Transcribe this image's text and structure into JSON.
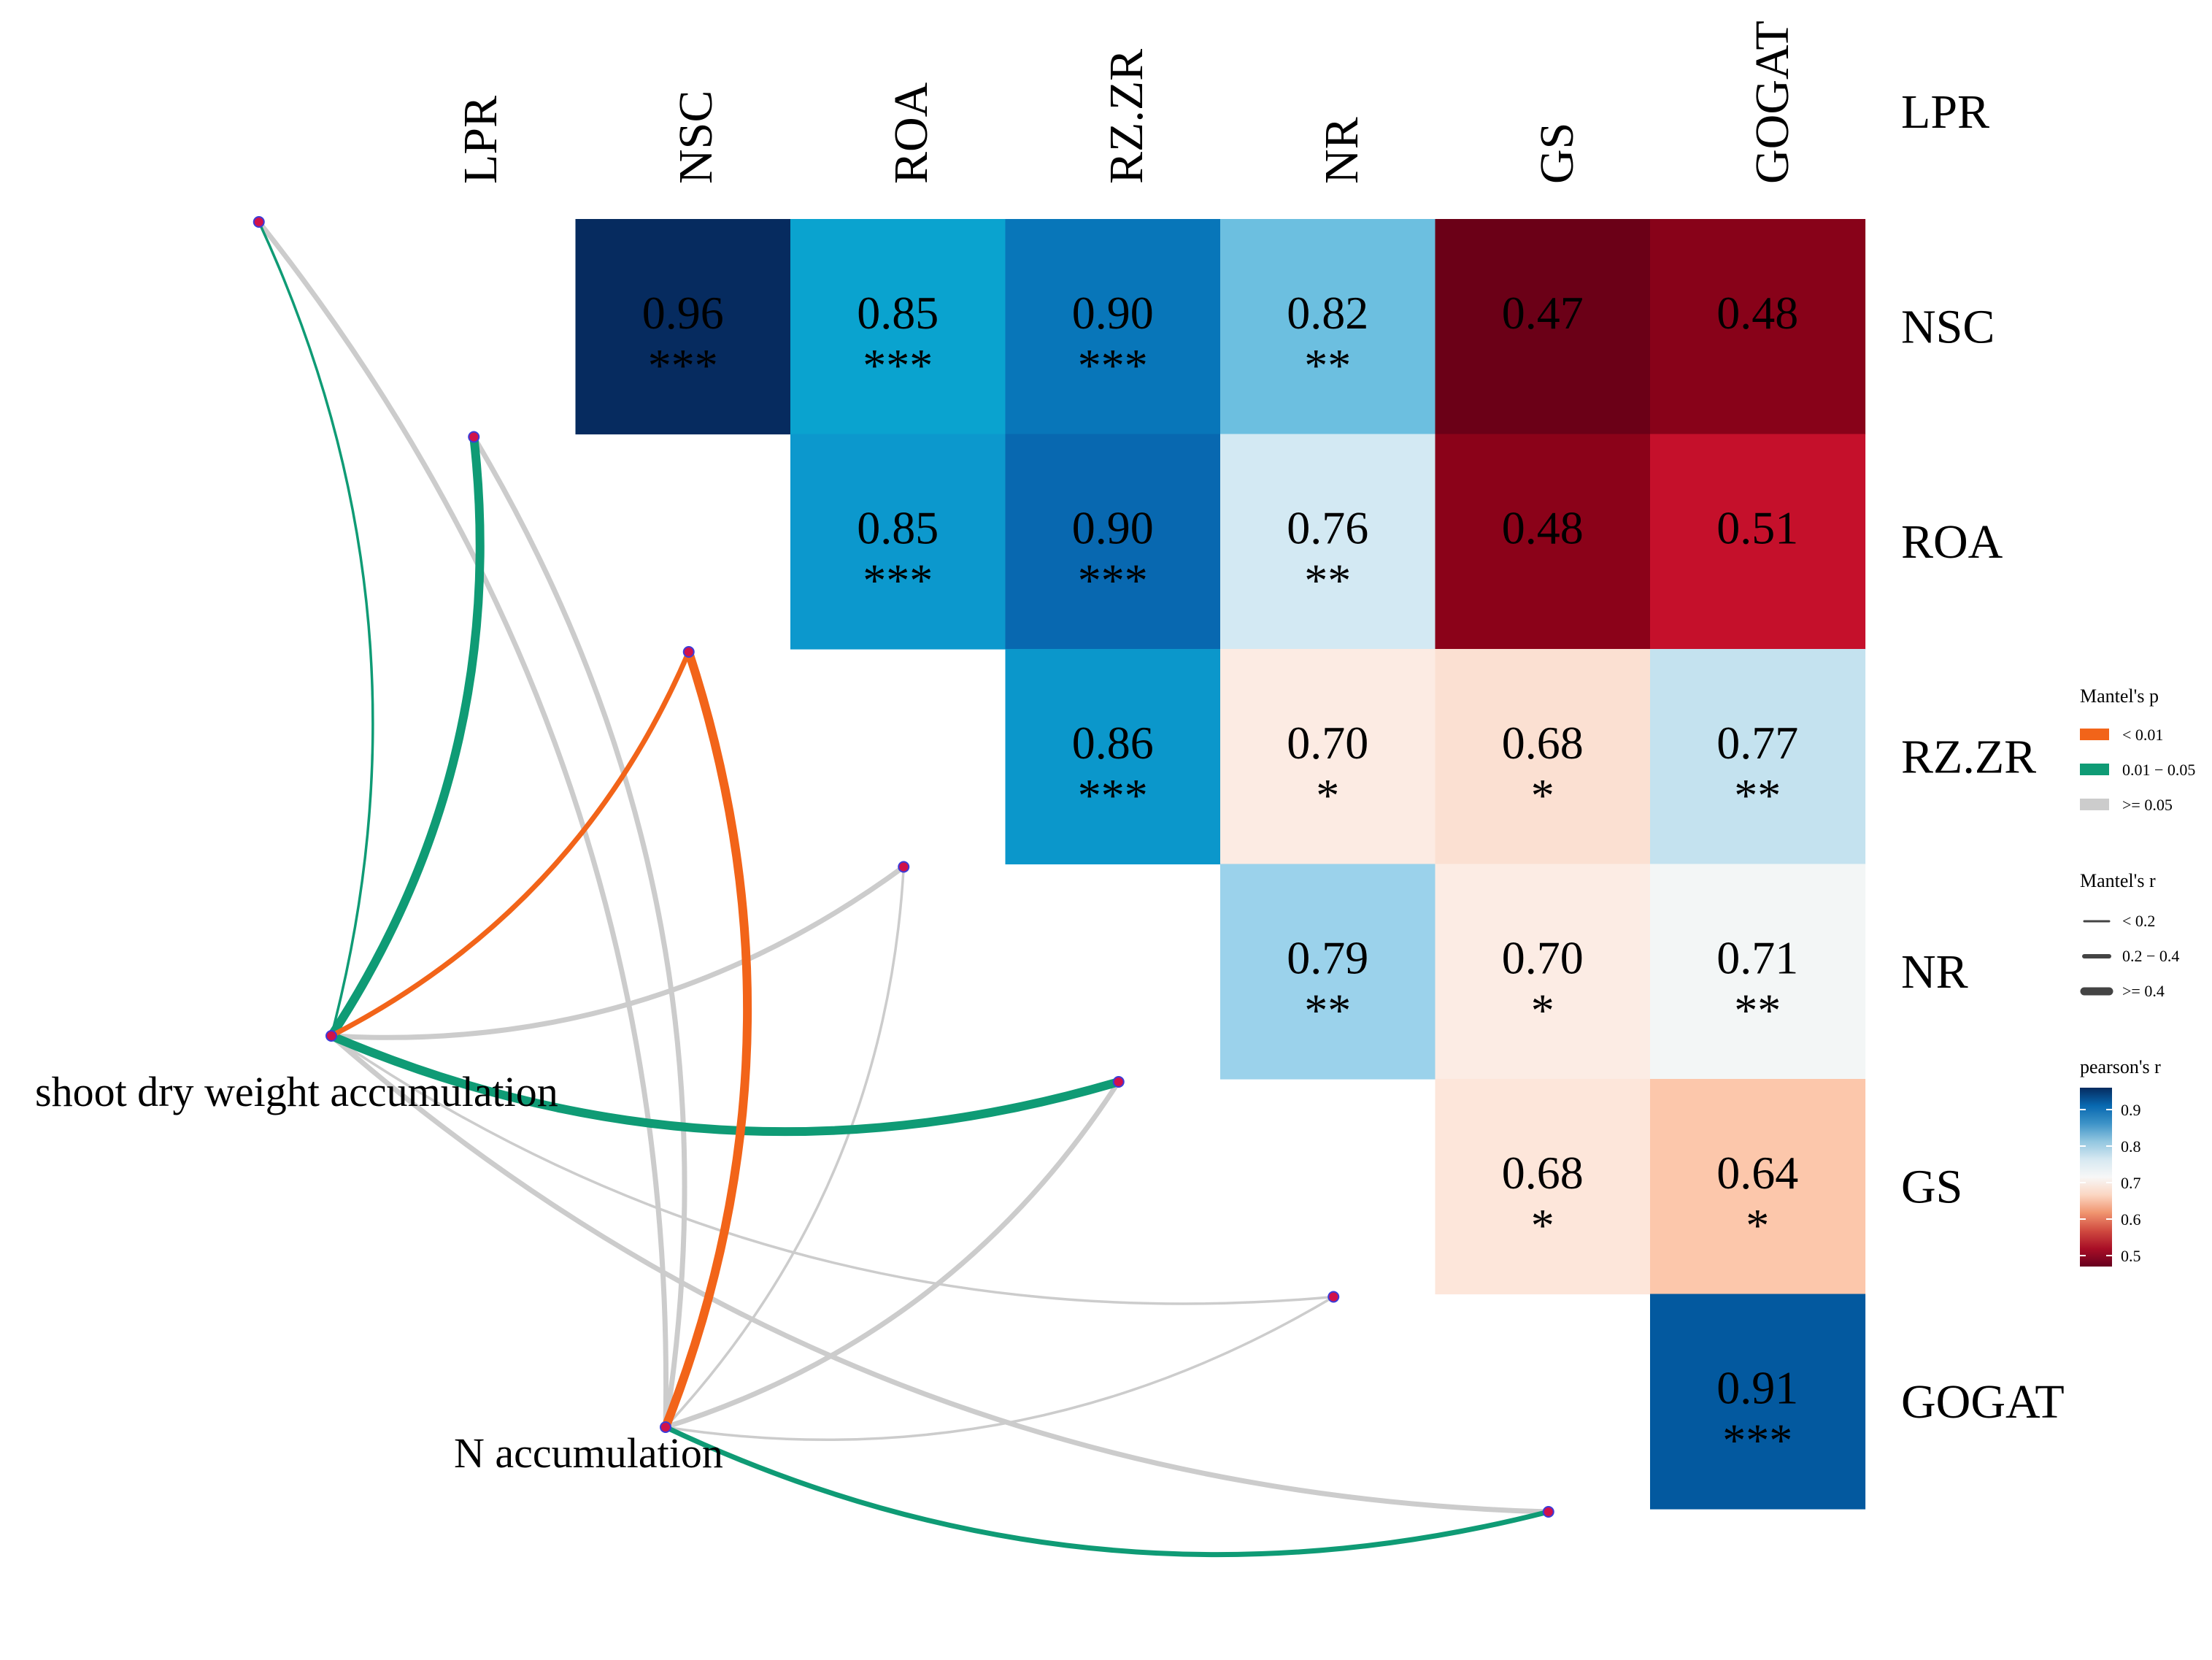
{
  "chart_data": {
    "type": "heatmap",
    "variables": [
      "LPR",
      "NSC",
      "ROA",
      "RZ.ZR",
      "NR",
      "GS",
      "GOGAT"
    ],
    "correlation_cells": [
      {
        "row": "LPR",
        "col": "NSC",
        "r": 0.96,
        "sig": "***",
        "color": "#062b5f"
      },
      {
        "row": "LPR",
        "col": "ROA",
        "r": 0.85,
        "sig": "***",
        "color": "#0aa3cf"
      },
      {
        "row": "LPR",
        "col": "RZ.ZR",
        "r": 0.9,
        "sig": "***",
        "color": "#0876b9"
      },
      {
        "row": "LPR",
        "col": "NR",
        "r": 0.82,
        "sig": "**",
        "color": "#6cbfe0"
      },
      {
        "row": "LPR",
        "col": "GS",
        "r": 0.47,
        "sig": "",
        "color": "#6b0017"
      },
      {
        "row": "LPR",
        "col": "GOGAT",
        "r": 0.48,
        "sig": "",
        "color": "#880219"
      },
      {
        "row": "NSC",
        "col": "ROA",
        "r": 0.85,
        "sig": "***",
        "color": "#0c98cd"
      },
      {
        "row": "NSC",
        "col": "RZ.ZR",
        "r": 0.9,
        "sig": "***",
        "color": "#0868b0"
      },
      {
        "row": "NSC",
        "col": "NR",
        "r": 0.76,
        "sig": "**",
        "color": "#d3e9f3"
      },
      {
        "row": "NSC",
        "col": "GS",
        "r": 0.48,
        "sig": "",
        "color": "#8b0219"
      },
      {
        "row": "NSC",
        "col": "GOGAT",
        "r": 0.51,
        "sig": "",
        "color": "#c5102b"
      },
      {
        "row": "ROA",
        "col": "RZ.ZR",
        "r": 0.86,
        "sig": "***",
        "color": "#0b97cb"
      },
      {
        "row": "ROA",
        "col": "NR",
        "r": 0.7,
        "sig": "*",
        "color": "#fcebe3"
      },
      {
        "row": "ROA",
        "col": "GS",
        "r": 0.68,
        "sig": "*",
        "color": "#fbe0d2"
      },
      {
        "row": "ROA",
        "col": "GOGAT",
        "r": 0.77,
        "sig": "**",
        "color": "#c4e2ef"
      },
      {
        "row": "RZ.ZR",
        "col": "NR",
        "r": 0.79,
        "sig": "**",
        "color": "#9bd2eb"
      },
      {
        "row": "RZ.ZR",
        "col": "GS",
        "r": 0.7,
        "sig": "*",
        "color": "#fcece4"
      },
      {
        "row": "RZ.ZR",
        "col": "GOGAT",
        "r": 0.71,
        "sig": "**",
        "color": "#f3f6f6"
      },
      {
        "row": "NR",
        "col": "GS",
        "r": 0.68,
        "sig": "*",
        "color": "#fde6da"
      },
      {
        "row": "NR",
        "col": "GOGAT",
        "r": 0.64,
        "sig": "*",
        "color": "#fcc7ab"
      },
      {
        "row": "GS",
        "col": "GOGAT",
        "r": 0.91,
        "sig": "***",
        "color": "#03599f"
      }
    ],
    "mantel_sources": [
      "shoot dry weight accumulation",
      "N accumulation"
    ],
    "mantel_links": [
      {
        "from": "shoot dry weight accumulation",
        "to": "LPR",
        "p_class": "0.01 − 0.05",
        "r_class": "< 0.2"
      },
      {
        "from": "shoot dry weight accumulation",
        "to": "NSC",
        "p_class": "0.01 − 0.05",
        "r_class": ">= 0.4"
      },
      {
        "from": "shoot dry weight accumulation",
        "to": "ROA",
        "p_class": "< 0.01",
        "r_class": "0.2 − 0.4"
      },
      {
        "from": "shoot dry weight accumulation",
        "to": "RZ.ZR",
        "p_class": ">= 0.05",
        "r_class": "0.2 − 0.4"
      },
      {
        "from": "shoot dry weight accumulation",
        "to": "NR",
        "p_class": "0.01 − 0.05",
        "r_class": ">= 0.4"
      },
      {
        "from": "shoot dry weight accumulation",
        "to": "GS",
        "p_class": ">= 0.05",
        "r_class": "< 0.2"
      },
      {
        "from": "shoot dry weight accumulation",
        "to": "GOGAT",
        "p_class": ">= 0.05",
        "r_class": "0.2 − 0.4"
      },
      {
        "from": "N accumulation",
        "to": "LPR",
        "p_class": ">= 0.05",
        "r_class": "0.2 − 0.4"
      },
      {
        "from": "N accumulation",
        "to": "NSC",
        "p_class": ">= 0.05",
        "r_class": "0.2 − 0.4"
      },
      {
        "from": "N accumulation",
        "to": "ROA",
        "p_class": "< 0.01",
        "r_class": ">= 0.4"
      },
      {
        "from": "N accumulation",
        "to": "RZ.ZR",
        "p_class": ">= 0.05",
        "r_class": "< 0.2"
      },
      {
        "from": "N accumulation",
        "to": "NR",
        "p_class": ">= 0.05",
        "r_class": "0.2 − 0.4"
      },
      {
        "from": "N accumulation",
        "to": "GS",
        "p_class": ">= 0.05",
        "r_class": "< 0.2"
      },
      {
        "from": "N accumulation",
        "to": "GOGAT",
        "p_class": "0.01 − 0.05",
        "r_class": "0.2 − 0.4"
      }
    ],
    "legend_mantel_p": {
      "title": "Mantel's p",
      "items": [
        {
          "label": "< 0.01",
          "color": "#f26419"
        },
        {
          "label": "0.01 − 0.05",
          "color": "#0f9b75"
        },
        {
          "label": ">= 0.05",
          "color": "#cccccc"
        }
      ]
    },
    "legend_mantel_r": {
      "title": "Mantel's r",
      "items": [
        {
          "label": "< 0.2"
        },
        {
          "label": "0.2 − 0.4"
        },
        {
          "label": ">= 0.4"
        }
      ]
    },
    "legend_pearson": {
      "title": "pearson's r",
      "ticks": [
        0.9,
        0.8,
        0.7,
        0.6,
        0.5
      ],
      "tick_labels": [
        "0.9",
        "0.8",
        "0.7",
        "0.6",
        "0.5"
      ],
      "range": [
        0.47,
        0.96
      ],
      "colors": [
        "#062b5f",
        "#0868b0",
        "#3d93c7",
        "#92c6e0",
        "#d6e8f1",
        "#f7f7f7",
        "#fbd6c2",
        "#f0946f",
        "#d04a40",
        "#a80e26",
        "#67001f"
      ]
    },
    "legend_placement": "right"
  }
}
